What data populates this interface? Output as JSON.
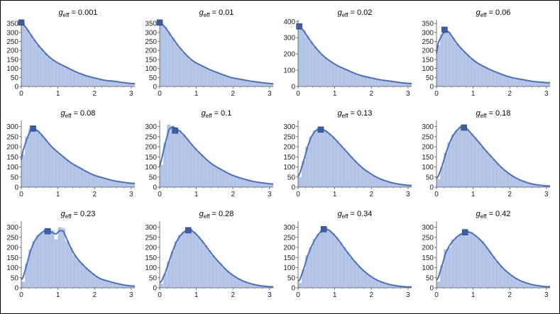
{
  "figure": {
    "colors": {
      "bars": "#b3c3e6",
      "curve": "#4a6fbf",
      "marker": "#3a5ea8",
      "axis": "#555555"
    }
  },
  "chart_data": [
    {
      "type": "bar+line",
      "title": "0.001",
      "xlim": [
        0,
        3.1
      ],
      "ylim": [
        0,
        370
      ],
      "xticks": [
        "0",
        "1",
        "2",
        "3"
      ],
      "yticks": [
        "0",
        "50",
        "100",
        "150",
        "200",
        "250",
        "300",
        "350"
      ],
      "x": [
        0.05,
        0.15,
        0.25,
        0.35,
        0.45,
        0.55,
        0.65,
        0.75,
        0.85,
        0.95,
        1.05,
        1.15,
        1.25,
        1.35,
        1.45,
        1.55,
        1.65,
        1.75,
        1.85,
        1.95,
        2.05,
        2.15,
        2.25,
        2.35,
        2.45,
        2.55,
        2.65,
        2.75,
        2.85,
        2.95,
        3.05
      ],
      "bars": [
        355,
        320,
        290,
        260,
        230,
        210,
        185,
        165,
        150,
        135,
        125,
        115,
        105,
        95,
        85,
        75,
        70,
        60,
        55,
        50,
        45,
        40,
        35,
        32,
        30,
        30,
        25,
        22,
        20,
        18,
        15
      ],
      "peak": {
        "x": 0.0,
        "y": 355
      }
    },
    {
      "type": "bar+line",
      "title": "0.01",
      "xlim": [
        0,
        3.1
      ],
      "ylim": [
        0,
        370
      ],
      "xticks": [
        "0",
        "1",
        "2",
        "3"
      ],
      "yticks": [
        "0",
        "50",
        "100",
        "150",
        "200",
        "250",
        "300",
        "350"
      ],
      "x": [
        0.05,
        0.15,
        0.25,
        0.35,
        0.45,
        0.55,
        0.65,
        0.75,
        0.85,
        0.95,
        1.05,
        1.15,
        1.25,
        1.35,
        1.45,
        1.55,
        1.65,
        1.75,
        1.85,
        1.95,
        2.05,
        2.15,
        2.25,
        2.35,
        2.45,
        2.55,
        2.65,
        2.75,
        2.85,
        2.95,
        3.05
      ],
      "bars": [
        355,
        330,
        300,
        270,
        240,
        215,
        190,
        170,
        150,
        135,
        125,
        115,
        105,
        95,
        85,
        80,
        70,
        65,
        55,
        50,
        45,
        42,
        38,
        35,
        30,
        28,
        25,
        22,
        20,
        18,
        15
      ],
      "peak": {
        "x": 0.0,
        "y": 355
      }
    },
    {
      "type": "bar+line",
      "title": "0.02",
      "xlim": [
        0,
        3.1
      ],
      "ylim": [
        0,
        410
      ],
      "xticks": [
        "0",
        "1",
        "2",
        "3"
      ],
      "yticks": [
        "0",
        "100",
        "200",
        "300",
        "400"
      ],
      "x": [
        0.05,
        0.15,
        0.25,
        0.35,
        0.45,
        0.55,
        0.65,
        0.75,
        0.85,
        0.95,
        1.05,
        1.15,
        1.25,
        1.35,
        1.45,
        1.55,
        1.65,
        1.75,
        1.85,
        1.95,
        2.05,
        2.15,
        2.25,
        2.35,
        2.45,
        2.55,
        2.65,
        2.75,
        2.85,
        2.95,
        3.05
      ],
      "bars": [
        375,
        345,
        310,
        275,
        245,
        220,
        195,
        175,
        160,
        145,
        130,
        120,
        110,
        100,
        90,
        80,
        72,
        65,
        60,
        55,
        50,
        45,
        40,
        38,
        35,
        32,
        28,
        25,
        22,
        20,
        18
      ],
      "peak": {
        "x": 0.03,
        "y": 370
      }
    },
    {
      "type": "bar+line",
      "title": "0.06",
      "xlim": [
        0,
        3.1
      ],
      "ylim": [
        0,
        370
      ],
      "xticks": [
        "0",
        "1",
        "2",
        "3"
      ],
      "yticks": [
        "0",
        "50",
        "100",
        "150",
        "200",
        "250",
        "300",
        "350"
      ],
      "x": [
        0.05,
        0.15,
        0.25,
        0.35,
        0.45,
        0.55,
        0.65,
        0.75,
        0.85,
        0.95,
        1.05,
        1.15,
        1.25,
        1.35,
        1.45,
        1.55,
        1.65,
        1.75,
        1.85,
        1.95,
        2.05,
        2.15,
        2.25,
        2.35,
        2.45,
        2.55,
        2.65,
        2.75,
        2.85,
        2.95,
        3.05
      ],
      "bars": [
        230,
        290,
        330,
        300,
        270,
        240,
        215,
        195,
        175,
        155,
        140,
        125,
        115,
        105,
        95,
        85,
        78,
        70,
        62,
        55,
        50,
        45,
        42,
        38,
        35,
        30,
        28,
        25,
        25,
        22,
        20
      ],
      "peak": {
        "x": 0.22,
        "y": 315
      }
    },
    {
      "type": "bar+line",
      "title": "0.08",
      "xlim": [
        0,
        3.1
      ],
      "ylim": [
        0,
        330
      ],
      "xticks": [
        "0",
        "1",
        "2",
        "3"
      ],
      "yticks": [
        "0",
        "50",
        "100",
        "150",
        "200",
        "250",
        "300"
      ],
      "x": [
        0.05,
        0.15,
        0.25,
        0.35,
        0.45,
        0.55,
        0.65,
        0.75,
        0.85,
        0.95,
        1.05,
        1.15,
        1.25,
        1.35,
        1.45,
        1.55,
        1.65,
        1.75,
        1.85,
        1.95,
        2.05,
        2.15,
        2.25,
        2.35,
        2.45,
        2.55,
        2.65,
        2.75,
        2.85,
        2.95,
        3.05
      ],
      "bars": [
        160,
        250,
        290,
        295,
        280,
        260,
        240,
        215,
        195,
        180,
        165,
        150,
        135,
        120,
        110,
        100,
        90,
        80,
        70,
        62,
        55,
        50,
        45,
        40,
        35,
        30,
        28,
        25,
        22,
        20,
        18
      ],
      "peak": {
        "x": 0.32,
        "y": 290
      }
    },
    {
      "type": "bar+line",
      "title": "0.1",
      "xlim": [
        0,
        3.1
      ],
      "ylim": [
        0,
        330
      ],
      "xticks": [
        "0",
        "1",
        "2",
        "3"
      ],
      "yticks": [
        "0",
        "50",
        "100",
        "150",
        "200",
        "250",
        "300"
      ],
      "x": [
        0.05,
        0.15,
        0.25,
        0.35,
        0.45,
        0.55,
        0.65,
        0.75,
        0.85,
        0.95,
        1.05,
        1.15,
        1.25,
        1.35,
        1.45,
        1.55,
        1.65,
        1.75,
        1.85,
        1.95,
        2.05,
        2.15,
        2.25,
        2.35,
        2.45,
        2.55,
        2.65,
        2.75,
        2.85,
        2.95,
        3.05
      ],
      "bars": [
        110,
        220,
        310,
        300,
        290,
        280,
        260,
        240,
        215,
        195,
        175,
        160,
        140,
        125,
        110,
        100,
        90,
        80,
        70,
        60,
        55,
        48,
        42,
        38,
        32,
        28,
        25,
        22,
        20,
        18,
        15
      ],
      "peak": {
        "x": 0.42,
        "y": 280
      }
    },
    {
      "type": "bar+line",
      "title": "0.13",
      "xlim": [
        0,
        3.1
      ],
      "ylim": [
        0,
        330
      ],
      "xticks": [
        "0",
        "1",
        "2",
        "3"
      ],
      "yticks": [
        "0",
        "50",
        "100",
        "150",
        "200",
        "250",
        "300"
      ],
      "x": [
        0.05,
        0.15,
        0.25,
        0.35,
        0.45,
        0.55,
        0.65,
        0.75,
        0.85,
        0.95,
        1.05,
        1.15,
        1.25,
        1.35,
        1.45,
        1.55,
        1.65,
        1.75,
        1.85,
        1.95,
        2.05,
        2.15,
        2.25,
        2.35,
        2.45,
        2.55,
        2.65,
        2.75,
        2.85,
        2.95,
        3.05
      ],
      "bars": [
        50,
        130,
        200,
        250,
        280,
        290,
        290,
        280,
        265,
        250,
        230,
        210,
        190,
        170,
        150,
        130,
        112,
        95,
        82,
        70,
        58,
        48,
        40,
        33,
        27,
        22,
        18,
        15,
        12,
        10,
        8
      ],
      "peak": {
        "x": 0.62,
        "y": 285
      }
    },
    {
      "type": "bar+line",
      "title": "0.18",
      "xlim": [
        0,
        3.1
      ],
      "ylim": [
        0,
        330
      ],
      "xticks": [
        "0",
        "1",
        "2",
        "3"
      ],
      "yticks": [
        "0",
        "50",
        "100",
        "150",
        "200",
        "250",
        "300"
      ],
      "x": [
        0.05,
        0.15,
        0.25,
        0.35,
        0.45,
        0.55,
        0.65,
        0.75,
        0.85,
        0.95,
        1.05,
        1.15,
        1.25,
        1.35,
        1.45,
        1.55,
        1.65,
        1.75,
        1.85,
        1.95,
        2.05,
        2.15,
        2.25,
        2.35,
        2.45,
        2.55,
        2.65,
        2.75,
        2.85,
        2.95,
        3.05
      ],
      "bars": [
        40,
        100,
        170,
        220,
        260,
        280,
        300,
        310,
        285,
        265,
        245,
        225,
        200,
        180,
        160,
        140,
        120,
        100,
        85,
        70,
        58,
        46,
        38,
        30,
        24,
        18,
        14,
        11,
        9,
        7,
        5
      ],
      "peak": {
        "x": 0.75,
        "y": 295
      }
    },
    {
      "type": "bar+line",
      "title": "0.23",
      "xlim": [
        0,
        3.1
      ],
      "ylim": [
        0,
        330
      ],
      "xticks": [
        "0",
        "1",
        "2",
        "3"
      ],
      "yticks": [
        "0",
        "50",
        "100",
        "150",
        "200",
        "250",
        "300"
      ],
      "x": [
        0.05,
        0.15,
        0.25,
        0.35,
        0.45,
        0.55,
        0.65,
        0.75,
        0.85,
        0.95,
        1.05,
        1.15,
        1.25,
        1.35,
        1.45,
        1.55,
        1.65,
        1.75,
        1.85,
        1.95,
        2.05,
        2.15,
        2.25,
        2.35,
        2.45,
        2.55,
        2.65,
        2.75,
        2.85,
        2.95,
        3.05
      ],
      "bars": [
        30,
        120,
        190,
        230,
        260,
        270,
        290,
        280,
        285,
        240,
        300,
        295,
        230,
        200,
        160,
        140,
        120,
        100,
        85,
        70,
        55,
        45,
        38,
        35,
        28,
        24,
        20,
        15,
        12,
        10,
        8
      ],
      "peak": {
        "x": 0.72,
        "y": 280
      }
    },
    {
      "type": "bar+line",
      "title": "0.28",
      "xlim": [
        0,
        3.1
      ],
      "ylim": [
        0,
        330
      ],
      "xticks": [
        "0",
        "1",
        "2",
        "3"
      ],
      "yticks": [
        "0",
        "50",
        "100",
        "150",
        "200",
        "250",
        "300"
      ],
      "x": [
        0.05,
        0.15,
        0.25,
        0.35,
        0.45,
        0.55,
        0.65,
        0.75,
        0.85,
        0.95,
        1.05,
        1.15,
        1.25,
        1.35,
        1.45,
        1.55,
        1.65,
        1.75,
        1.85,
        1.95,
        2.05,
        2.15,
        2.25,
        2.35,
        2.45,
        2.55,
        2.65,
        2.75,
        2.85,
        2.95,
        3.05
      ],
      "bars": [
        20,
        70,
        130,
        180,
        230,
        260,
        275,
        290,
        290,
        275,
        255,
        235,
        210,
        185,
        160,
        140,
        120,
        100,
        82,
        68,
        55,
        44,
        35,
        28,
        22,
        17,
        13,
        10,
        8,
        6,
        5
      ],
      "peak": {
        "x": 0.78,
        "y": 285
      }
    },
    {
      "type": "bar+line",
      "title": "0.34",
      "xlim": [
        0,
        3.1
      ],
      "ylim": [
        0,
        330
      ],
      "xticks": [
        "0",
        "1",
        "2",
        "3"
      ],
      "yticks": [
        "0",
        "50",
        "100",
        "150",
        "200",
        "250",
        "300"
      ],
      "x": [
        0.05,
        0.15,
        0.25,
        0.35,
        0.45,
        0.55,
        0.65,
        0.75,
        0.85,
        0.95,
        1.05,
        1.15,
        1.25,
        1.35,
        1.45,
        1.55,
        1.65,
        1.75,
        1.85,
        1.95,
        2.05,
        2.15,
        2.25,
        2.35,
        2.45,
        2.55,
        2.65,
        2.75,
        2.85,
        2.95,
        3.05
      ],
      "bars": [
        25,
        90,
        160,
        200,
        240,
        265,
        285,
        300,
        285,
        270,
        250,
        225,
        200,
        175,
        150,
        130,
        108,
        90,
        75,
        60,
        48,
        38,
        30,
        24,
        18,
        14,
        11,
        8,
        6,
        5,
        4
      ],
      "peak": {
        "x": 0.7,
        "y": 290
      }
    },
    {
      "type": "bar+line",
      "title": "0.42",
      "xlim": [
        0,
        3.1
      ],
      "ylim": [
        0,
        330
      ],
      "xticks": [
        "0",
        "1",
        "2",
        "3"
      ],
      "yticks": [
        "0",
        "50",
        "100",
        "150",
        "200",
        "250",
        "300"
      ],
      "x": [
        0.05,
        0.15,
        0.25,
        0.35,
        0.45,
        0.55,
        0.65,
        0.75,
        0.85,
        0.95,
        1.05,
        1.15,
        1.25,
        1.35,
        1.45,
        1.55,
        1.65,
        1.75,
        1.85,
        1.95,
        2.05,
        2.15,
        2.25,
        2.35,
        2.45,
        2.55,
        2.65,
        2.75,
        2.85,
        2.95,
        3.05
      ],
      "bars": [
        30,
        110,
        190,
        200,
        240,
        250,
        265,
        275,
        280,
        275,
        260,
        245,
        230,
        205,
        180,
        155,
        130,
        110,
        90,
        75,
        60,
        48,
        38,
        30,
        24,
        18,
        14,
        11,
        8,
        6,
        5
      ],
      "peak": {
        "x": 0.78,
        "y": 275
      }
    }
  ]
}
